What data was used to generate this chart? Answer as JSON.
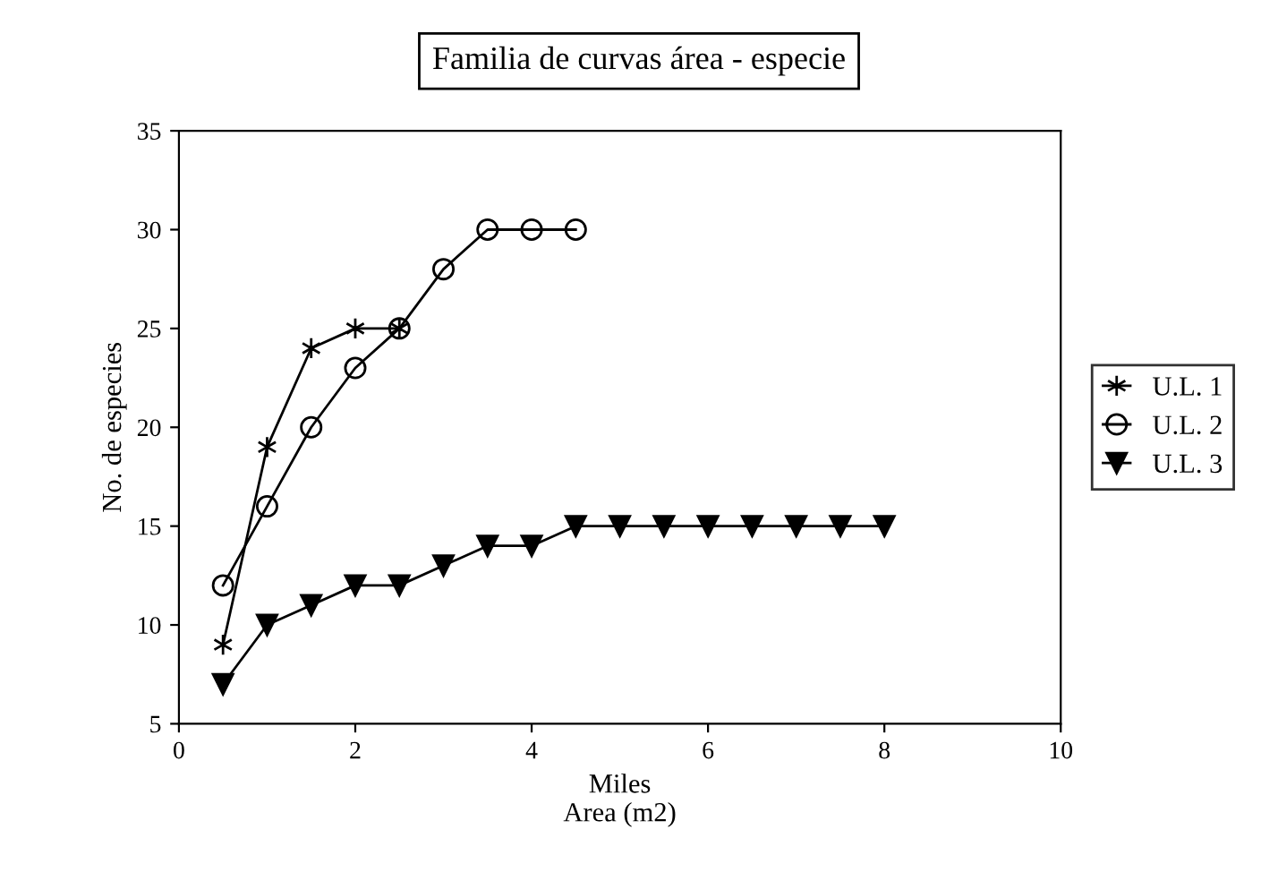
{
  "chart_data": {
    "type": "line",
    "title": "Familia de curvas área - especie",
    "xlabel": "Miles\nArea (m2)",
    "ylabel": "No. de especies",
    "xlim": [
      0,
      10
    ],
    "xticks": [
      0,
      2,
      4,
      6,
      8,
      10
    ],
    "ylim": [
      5,
      35
    ],
    "yticks": [
      5,
      10,
      15,
      20,
      25,
      30,
      35
    ],
    "grid": false,
    "legend": "right",
    "series": [
      {
        "name": "U.L. 1",
        "color": "#000000",
        "marker": "cross",
        "x": [
          0.5,
          1,
          1.5,
          2,
          2.5
        ],
        "values": [
          9,
          19,
          24,
          25,
          25
        ]
      },
      {
        "name": "U.L. 2",
        "color": "#000000",
        "marker": "circle",
        "x": [
          0.5,
          1,
          1.5,
          2,
          2.5,
          3,
          3.5,
          4,
          4.5
        ],
        "values": [
          12,
          16,
          20,
          23,
          25,
          28,
          30,
          30,
          30
        ]
      },
      {
        "name": "U.L. 3",
        "color": "#000000",
        "marker": "triangle",
        "x": [
          0.5,
          1,
          1.5,
          2,
          2.5,
          3,
          3.5,
          4,
          4.5,
          5,
          5.5,
          6,
          6.5,
          7,
          7.5,
          8
        ],
        "values": [
          7,
          10,
          11,
          12,
          12,
          13,
          14,
          14,
          15,
          15,
          15,
          15,
          15,
          15,
          15,
          15
        ]
      }
    ]
  }
}
